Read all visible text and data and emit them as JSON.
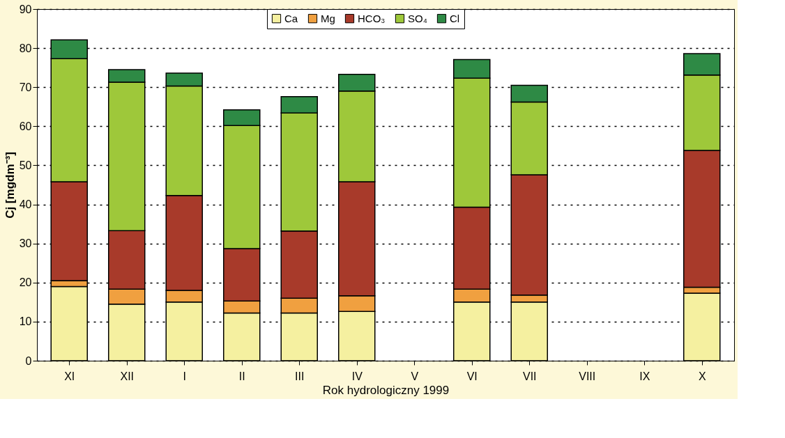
{
  "chart_data": {
    "type": "bar",
    "stacked": true,
    "xlabel": "Rok hydrologiczny 1999",
    "ylabel": "Cj [mgdm⁻³]",
    "categories": [
      "XI",
      "XII",
      "I",
      "II",
      "III",
      "IV",
      "V",
      "VI",
      "VII",
      "VIII",
      "IX",
      "X"
    ],
    "series": [
      {
        "name": "Ca",
        "color": "#f5f0a0",
        "values": [
          19,
          14.5,
          15,
          12.2,
          12.2,
          12.6,
          null,
          15,
          15,
          null,
          null,
          17.3
        ]
      },
      {
        "name": "Mg",
        "color": "#f0a040",
        "values": [
          1.5,
          3.8,
          3,
          3.1,
          3.8,
          4,
          null,
          3.3,
          1.8,
          null,
          null,
          1.5
        ]
      },
      {
        "name": "HCO₃",
        "color": "#a83a2a",
        "values": [
          25.3,
          15,
          24.3,
          13.4,
          17.2,
          29.2,
          null,
          21,
          30.8,
          null,
          null,
          35
        ]
      },
      {
        "name": "SO₄",
        "color": "#9ec83a",
        "values": [
          31.5,
          38,
          28,
          31.5,
          30.2,
          23.2,
          null,
          33,
          18.6,
          null,
          null,
          19.3
        ]
      },
      {
        "name": "Cl",
        "color": "#2e8a45",
        "values": [
          4.8,
          3.2,
          3.3,
          4,
          4.2,
          4.3,
          null,
          4.8,
          4.3,
          null,
          null,
          5.5
        ]
      }
    ],
    "ylim": [
      0,
      90
    ],
    "yticks": [
      0,
      10,
      20,
      30,
      40,
      50,
      60,
      70,
      80,
      90
    ],
    "grid": "y",
    "legend": "top"
  }
}
